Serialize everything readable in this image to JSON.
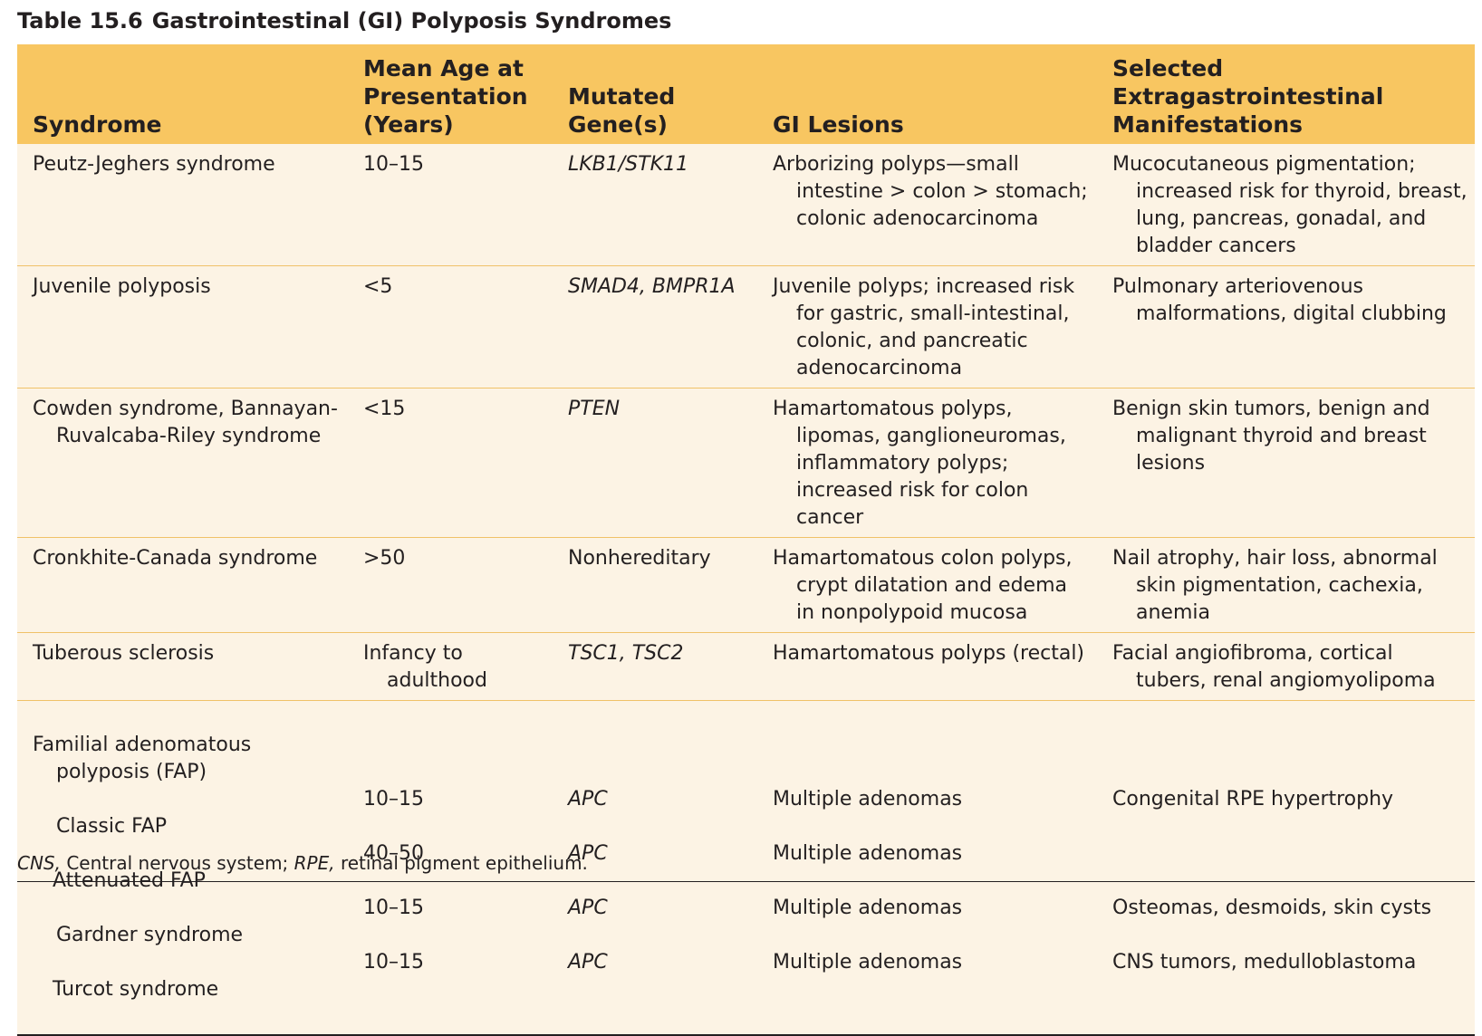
{
  "table": {
    "number": "Table 15.6",
    "title": "Gastrointestinal (GI) Polyposis Syndromes",
    "headers": {
      "syndrome": "Syndrome",
      "age": "Mean Age at\nPresentation\n(Years)",
      "gene": "Mutated\nGene(s)",
      "lesions": "GI Lesions",
      "extra": "Selected\nExtragastrointestinal\nManifestations"
    },
    "rows": [
      {
        "syndrome": "Peutz-Jeghers syndrome",
        "age": "10–15",
        "gene": "LKB1/STK11",
        "lesions": "Arborizing polyps—small intestine > colon > stomach; colonic adenocarcinoma",
        "extra": "Mucocutaneous pigmentation; increased risk for thyroid, breast, lung, pancreas, gonadal, and bladder cancers"
      },
      {
        "syndrome": "Juvenile polyposis",
        "age": "<5",
        "gene": "SMAD4, BMPR1A",
        "lesions": "Juvenile polyps; increased risk for gastric, small-intestinal, colonic, and pancreatic adenocarcinoma",
        "extra": "Pulmonary arteriovenous malformations, digital clubbing"
      },
      {
        "syndrome": "Cowden syndrome, Bannayan-Ruvalcaba-Riley syndrome",
        "age": "<15",
        "gene": "PTEN",
        "lesions": "Hamartomatous polyps, lipomas, ganglioneuromas, inflammatory polyps; increased risk for colon cancer",
        "extra": "Benign skin tumors, benign and malignant thyroid and breast lesions"
      },
      {
        "syndrome": "Cronkhite-Canada syndrome",
        "age": ">50",
        "gene": "Nonhereditary",
        "lesions": "Hamartomatous colon polyps, crypt dilatation and edema in nonpolypoid mucosa",
        "extra": "Nail atrophy, hair loss, abnormal skin pigmentation, cachexia, anemia"
      },
      {
        "syndrome": "Tuberous sclerosis",
        "age": "Infancy to adulthood",
        "gene": "TSC1, TSC2",
        "lesions": "Hamartomatous polyps (rectal)",
        "extra": "Facial angiofibroma, cortical tubers, renal angiomyolipoma"
      }
    ],
    "fap": {
      "group_label": "Familial adenomatous polyposis (FAP)",
      "subtypes": [
        {
          "name": "Classic FAP",
          "age": "10–15",
          "gene": "APC",
          "lesions": "Multiple adenomas",
          "extra": "Congenital RPE hypertrophy"
        },
        {
          "name": "Attenuated FAP",
          "age": "40–50",
          "gene": "APC",
          "lesions": "Multiple adenomas",
          "extra": ""
        },
        {
          "name": "Gardner syndrome",
          "age": "10–15",
          "gene": "APC",
          "lesions": "Multiple adenomas",
          "extra": "Osteomas, desmoids, skin cysts"
        },
        {
          "name": "Turcot syndrome",
          "age": "10–15",
          "gene": "APC",
          "lesions": "Multiple adenomas",
          "extra": "CNS tumors, medulloblastoma"
        }
      ]
    },
    "footnote": {
      "abbr1": "CNS,",
      "def1": " Central nervous system; ",
      "abbr2": "RPE,",
      "def2": " retinal pigment epithelium."
    }
  },
  "colors": {
    "header_bg": "#f8c661",
    "row_bg": "#fcf3e4",
    "row_rule": "#f0c168",
    "text": "#231f20"
  }
}
